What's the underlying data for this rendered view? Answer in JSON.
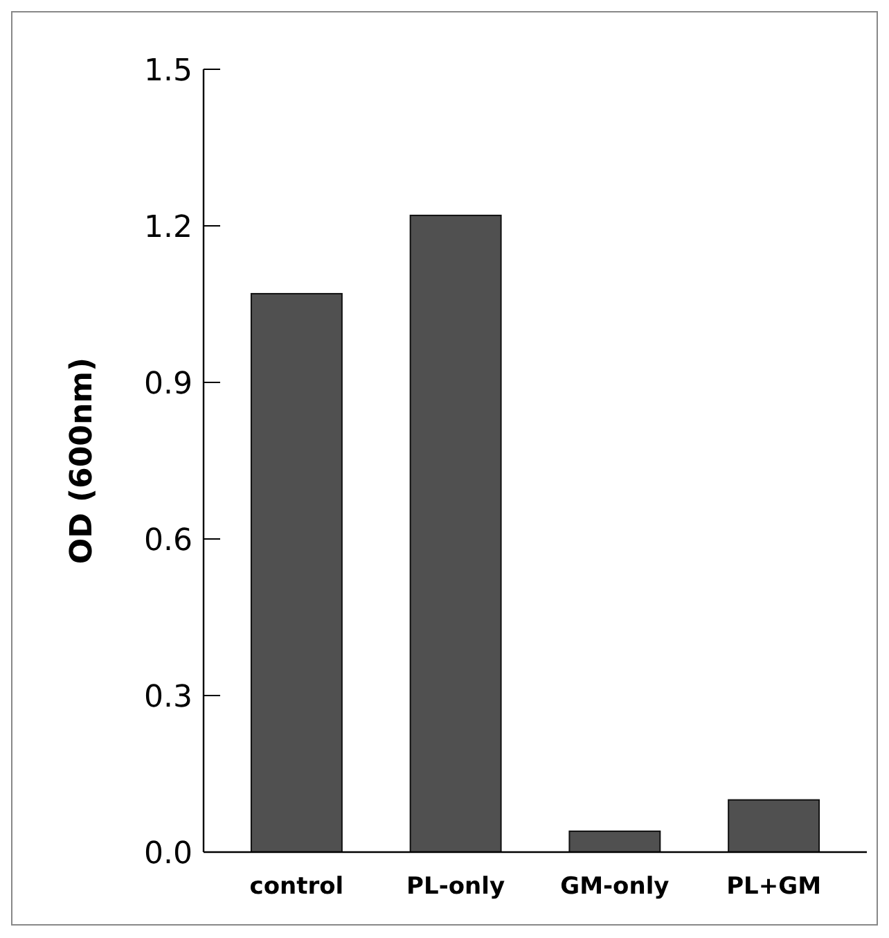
{
  "chart_data": {
    "type": "bar",
    "ylabel": "OD (600nm)",
    "categories": [
      "control",
      "PL-only",
      "GM-only",
      "PL+GM"
    ],
    "values": [
      1.07,
      1.22,
      0.04,
      0.1
    ],
    "color": "#505050",
    "ylim": [
      0,
      1.5
    ],
    "yticks": [
      {
        "value": 0,
        "label": "0.0"
      },
      {
        "value": 0.3,
        "label": "0.3"
      },
      {
        "value": 0.6,
        "label": "0.6"
      },
      {
        "value": 0.9,
        "label": "0.9"
      },
      {
        "value": 1.2,
        "label": "1.2"
      },
      {
        "value": 1.5,
        "label": "1.5"
      }
    ]
  }
}
